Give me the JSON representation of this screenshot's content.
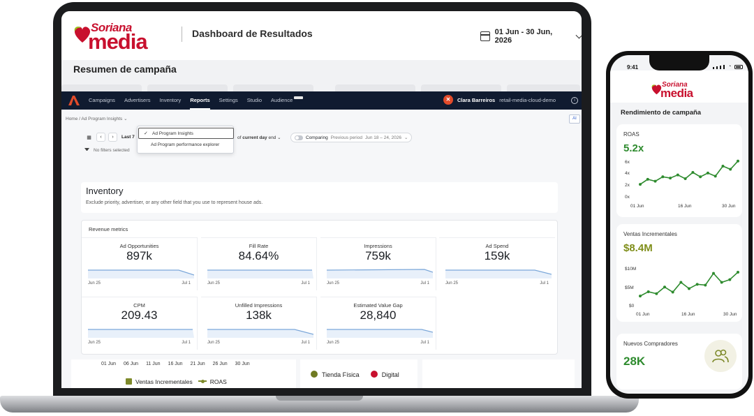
{
  "laptop": {
    "header": {
      "logo_top": "Soriana",
      "logo_bottom": "media",
      "title": "Dashboard de Resultados",
      "date_range": "01 Jun - 30 Jun, 2026"
    },
    "summary_title": "Resumen de campaña",
    "nav": {
      "items": [
        "Campaigns",
        "Advertisers",
        "Inventory",
        "Reports",
        "Settings",
        "Studio",
        "Audience"
      ],
      "active": "Reports",
      "user_name": "Clara Barreiros",
      "org_name": "retail-media-cloud-demo",
      "avatar_initial": "✕"
    },
    "report": {
      "breadcrumb_home": "Home",
      "breadcrumb_sep": "/",
      "breadcrumb_current": "Ad Program Insights",
      "ai_label": "AI",
      "last_label": "Last 7",
      "current_day_prefix": "of",
      "current_day_label": "current day",
      "current_day_suffix": "end",
      "comparing_label": "Comparing",
      "previous_period_label": "Previous period",
      "previous_period_value": "Jun 18 – 24, 2026",
      "filters_label": "No filters selected",
      "dropdown": {
        "selected": "Ad Program Insights",
        "other": "Ad Program performance explorer"
      },
      "inventory_title": "Inventory",
      "inventory_desc": "Exclude priority, advertiser, or any other field that you use to represent house ads.",
      "revenue_label": "Revenue metrics",
      "metrics": [
        {
          "label": "Ad Opportunities",
          "value": "897k",
          "start": "Jun 25",
          "end": "Jul 1"
        },
        {
          "label": "Fill Rate",
          "value": "84.64%",
          "start": "Jun 25",
          "end": "Jul 1"
        },
        {
          "label": "Impressions",
          "value": "759k",
          "start": "Jun 25",
          "end": "Jul 1"
        },
        {
          "label": "Ad Spend",
          "value": "159k",
          "start": "Jun 25",
          "end": "Jul 1"
        },
        {
          "label": "CPM",
          "value": "209.43",
          "start": "Jun 25",
          "end": "Jul 1"
        },
        {
          "label": "Unfilled Impressions",
          "value": "138k",
          "start": "Jun 25",
          "end": "Jul 1"
        },
        {
          "label": "Estimated Value Gap",
          "value": "28,840",
          "start": "Jun 25",
          "end": "Jul 1"
        }
      ],
      "bottom": {
        "x_ticks": [
          "01 Jun",
          "06 Jun",
          "11 Jun",
          "16 Jun",
          "21 Jun",
          "26 Jun",
          "30 Jun"
        ],
        "legend_bar": "Ventas Incrementales",
        "legend_line": "ROAS",
        "legend_store": "Tienda Física",
        "legend_digital": "Digital"
      }
    }
  },
  "phone": {
    "time": "9:41",
    "logo_top": "Soriana",
    "logo_bottom": "media",
    "section_title": "Rendimiento de campaña",
    "roas": {
      "label": "ROAS",
      "value": "5.2x",
      "y_ticks": [
        "6x",
        "4x",
        "2x",
        "0x"
      ],
      "x_ticks": [
        "01 Jun",
        "16 Jun",
        "30 Jun"
      ]
    },
    "ventas": {
      "label": "Ventas Incrementales",
      "value": "$8.4M",
      "y_ticks": [
        "$10M",
        "$5M",
        "$0"
      ],
      "x_ticks": [
        "01 Jun",
        "16 Jun",
        "30 Jun"
      ]
    },
    "compradores": {
      "label": "Nuevos Compradores",
      "value": "28K"
    }
  },
  "chart_data": [
    {
      "type": "line",
      "title": "ROAS",
      "x": [
        "01 Jun",
        "03 Jun",
        "06 Jun",
        "08 Jun",
        "10 Jun",
        "13 Jun",
        "14 Jun",
        "16 Jun",
        "18 Jun",
        "21 Jun",
        "23 Jun",
        "25 Jun",
        "27 Jun",
        "30 Jun"
      ],
      "series": [
        {
          "name": "ROAS",
          "values": [
            2.1,
            2.9,
            2.6,
            3.3,
            3.1,
            3.6,
            3.0,
            4.0,
            3.3,
            3.9,
            3.4,
            5.0,
            4.5,
            5.8
          ]
        }
      ],
      "ylim": [
        0,
        6
      ],
      "y_ticks": [
        "0x",
        "2x",
        "4x",
        "6x"
      ],
      "x_ticks": [
        "01 Jun",
        "16 Jun",
        "30 Jun"
      ],
      "color": "#2e8b2e"
    },
    {
      "type": "line",
      "title": "Ventas Incrementales",
      "x": [
        "01 Jun",
        "03 Jun",
        "06 Jun",
        "08 Jun",
        "10 Jun",
        "13 Jun",
        "16 Jun",
        "18 Jun",
        "21 Jun",
        "23 Jun",
        "25 Jun",
        "27 Jun",
        "30 Jun"
      ],
      "series": [
        {
          "name": "Ventas Incrementales",
          "values": [
            2.3,
            3.4,
            2.9,
            4.6,
            3.3,
            5.8,
            4.2,
            5.3,
            5.1,
            8.1,
            5.8,
            6.5,
            8.4
          ]
        }
      ],
      "ylim": [
        0,
        10
      ],
      "y_ticks": [
        "$0",
        "$5M",
        "$10M"
      ],
      "x_ticks": [
        "01 Jun",
        "16 Jun",
        "30 Jun"
      ],
      "color": "#2e8b2e"
    }
  ],
  "colors": {
    "brand_red": "#c8102e",
    "nav_dark": "#101b30",
    "olive": "#7e8a2b",
    "green": "#2e8b2e",
    "digital_red": "#c8102e",
    "spark_blue": "#7ba7d9"
  }
}
